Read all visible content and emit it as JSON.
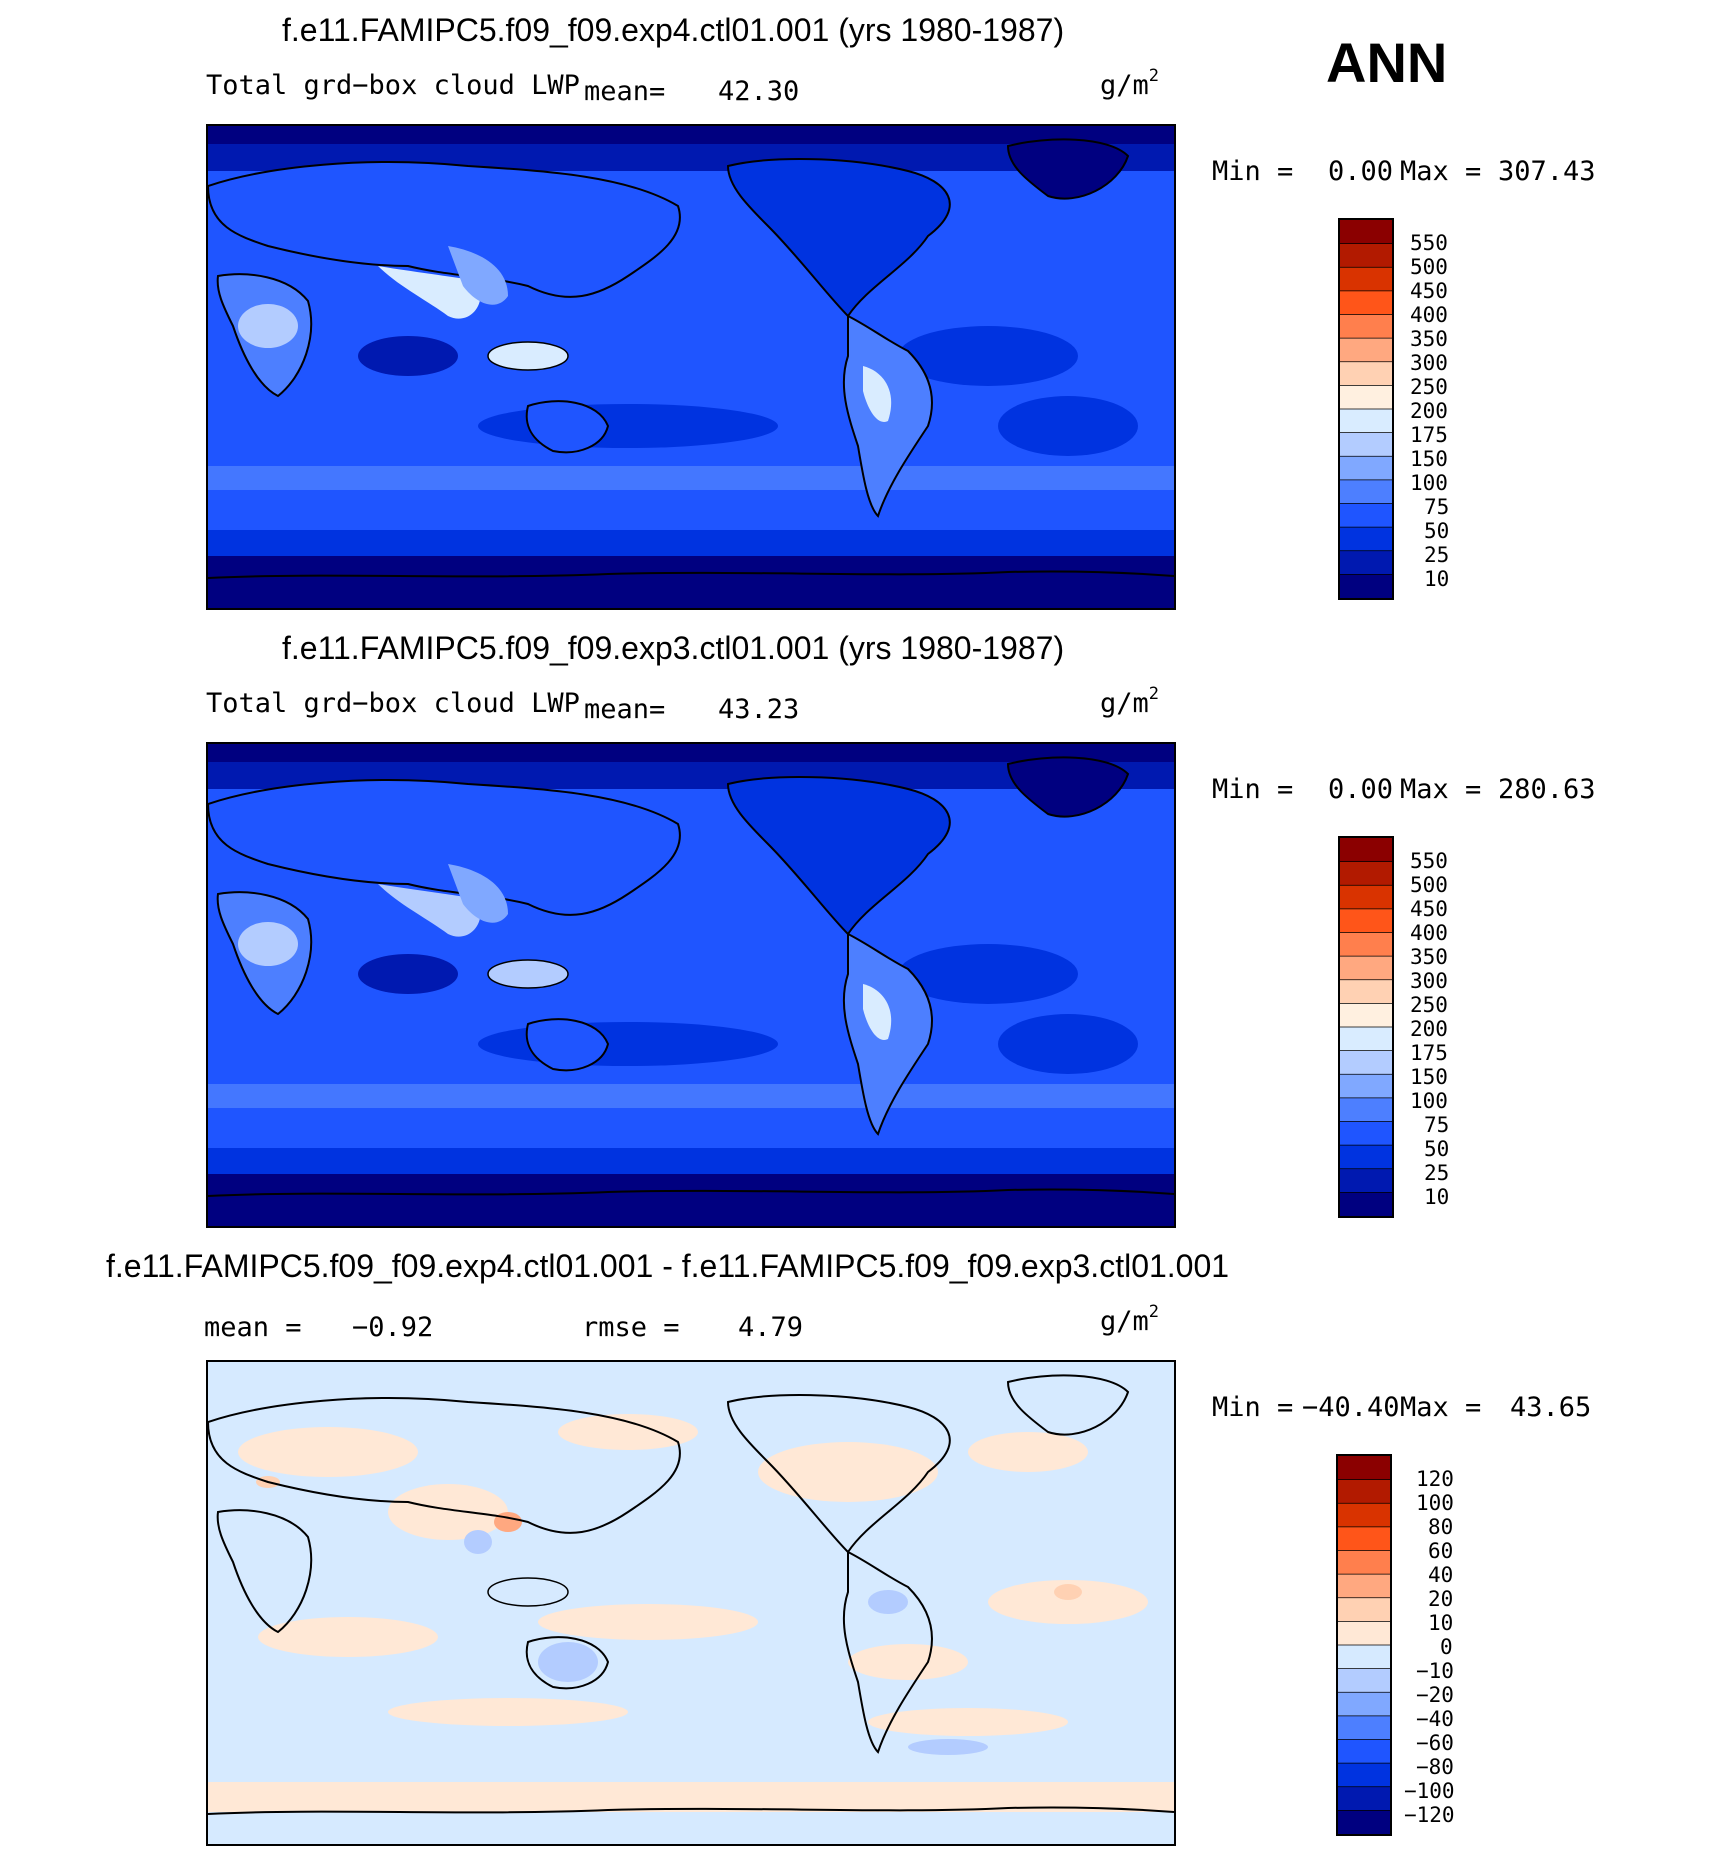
{
  "season": "ANN",
  "panels": [
    {
      "title": "f.e11.FAMIPC5.f09_f09.exp4.ctl01.001 (yrs 1980-1987)",
      "variable": "Total grd−box cloud LWP",
      "mean_label": "mean=",
      "mean_value": "42.30",
      "units_base": "g/m",
      "units_exp": "2",
      "min_label": "Min =",
      "min_value": "0.00",
      "max_label": "Max =",
      "max_value": "307.43",
      "field": "absolute"
    },
    {
      "title": "f.e11.FAMIPC5.f09_f09.exp3.ctl01.001 (yrs 1980-1987)",
      "variable": "Total grd−box cloud LWP",
      "mean_label": "mean=",
      "mean_value": "43.23",
      "units_base": "g/m",
      "units_exp": "2",
      "min_label": "Min =",
      "min_value": "0.00",
      "max_label": "Max =",
      "max_value": "280.63",
      "field": "absolute"
    },
    {
      "title": "f.e11.FAMIPC5.f09_f09.exp4.ctl01.001 - f.e11.FAMIPC5.f09_f09.exp3.ctl01.001",
      "mean_label": "mean =",
      "mean_value": "−0.92",
      "rmse_label": "rmse =",
      "rmse_value": "4.79",
      "units_base": "g/m",
      "units_exp": "2",
      "min_label": "Min =",
      "min_value": "−40.40",
      "max_label": "Max =",
      "max_value": "43.65",
      "field": "difference"
    }
  ],
  "colorbars": {
    "absolute": {
      "levels": [
        "550",
        "500",
        "450",
        "400",
        "350",
        "300",
        "250",
        "200",
        "175",
        "150",
        "100",
        "75",
        "50",
        "25",
        "10"
      ],
      "colors": [
        "#8b0000",
        "#b21a00",
        "#d93300",
        "#ff5519",
        "#ff7f4d",
        "#ffa880",
        "#ffd1b3",
        "#fff0e0",
        "#d9ecff",
        "#b3ccff",
        "#80a8ff",
        "#4d7fff",
        "#1f55ff",
        "#0033e0",
        "#0019b0",
        "#000080"
      ]
    },
    "difference": {
      "levels": [
        "120",
        "100",
        "80",
        "60",
        "40",
        "20",
        "10",
        "0",
        "−10",
        "−20",
        "−40",
        "−60",
        "−80",
        "−100",
        "−120"
      ],
      "colors": [
        "#8b0000",
        "#b21a00",
        "#d93300",
        "#ff5519",
        "#ff7f4d",
        "#ffa880",
        "#ffd1b3",
        "#ffe8d6",
        "#d6eaff",
        "#b3ccff",
        "#80a8ff",
        "#4d7fff",
        "#1f55ff",
        "#0033e0",
        "#0019b0",
        "#000080"
      ]
    }
  }
}
